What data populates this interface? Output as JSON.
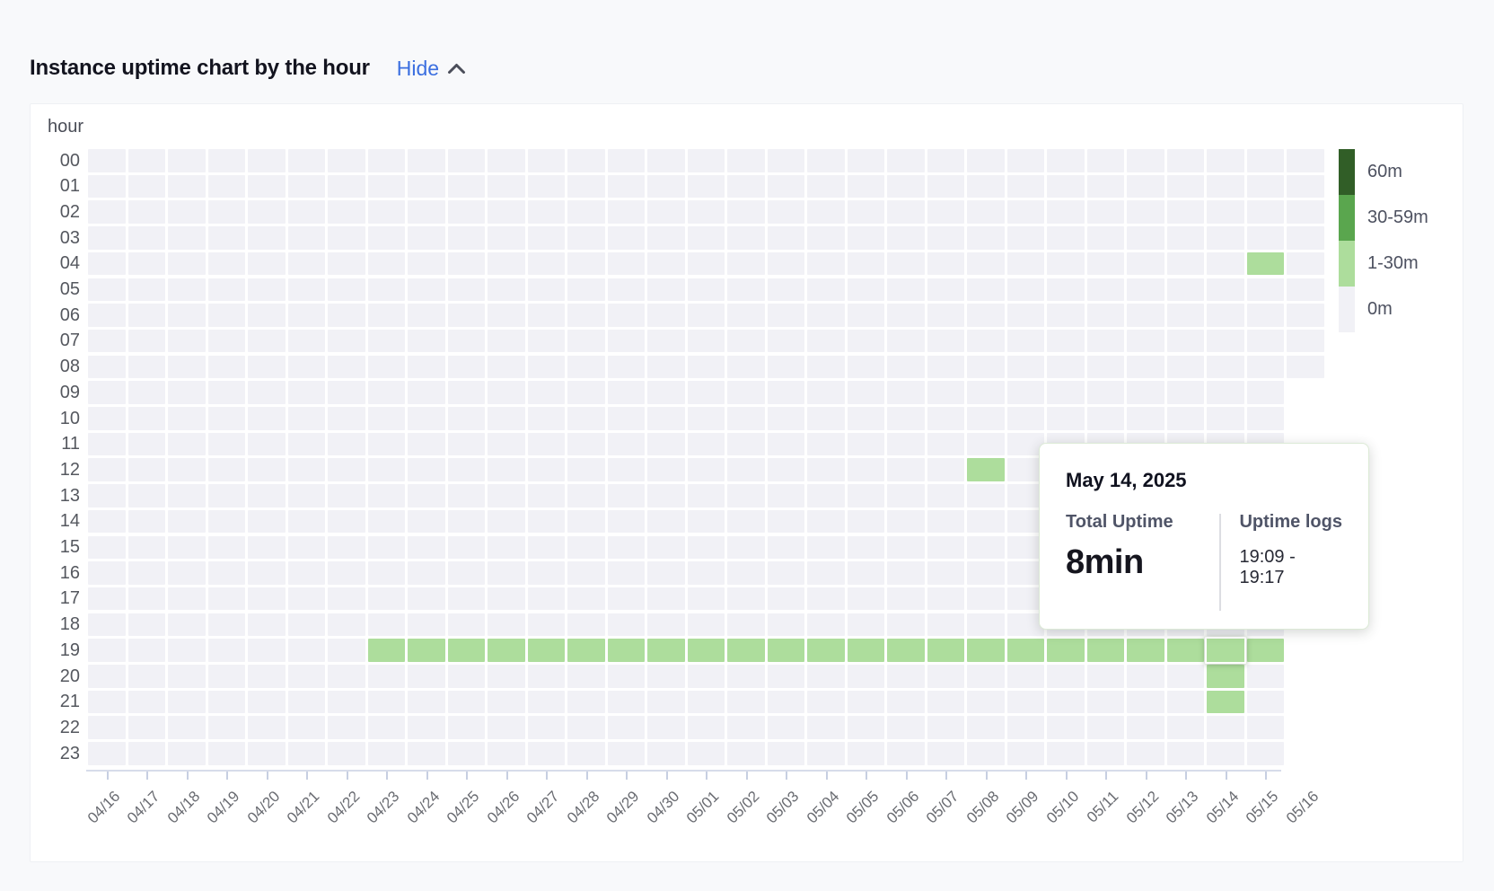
{
  "header": {
    "title": "Instance uptime chart by the hour",
    "toggle_label": "Hide",
    "toggle_icon": "chevron-up-icon",
    "link_color": "#3b6fe0"
  },
  "chart_data": {
    "type": "heatmap",
    "title": "Instance uptime chart by the hour",
    "ylabel": "hour",
    "hours": [
      "00",
      "01",
      "02",
      "03",
      "04",
      "05",
      "06",
      "07",
      "08",
      "09",
      "10",
      "11",
      "12",
      "13",
      "14",
      "15",
      "16",
      "17",
      "18",
      "19",
      "20",
      "21",
      "22",
      "23"
    ],
    "dates": [
      "04/16",
      "04/17",
      "04/18",
      "04/19",
      "04/20",
      "04/21",
      "04/22",
      "04/23",
      "04/24",
      "04/25",
      "04/26",
      "04/27",
      "04/28",
      "04/29",
      "04/30",
      "05/01",
      "05/02",
      "05/03",
      "05/04",
      "05/05",
      "05/06",
      "05/07",
      "05/08",
      "05/09",
      "05/10",
      "05/11",
      "05/12",
      "05/13",
      "05/14",
      "05/15",
      "05/16"
    ],
    "last_date_max_hour": 8,
    "grid_on": true,
    "legend_position": "right",
    "legend": [
      {
        "label": "60m",
        "color": "#315e27"
      },
      {
        "label": "30-59m",
        "color": "#5aa64e"
      },
      {
        "label": "1-30m",
        "color": "#addd9c"
      },
      {
        "label": "0m",
        "color": "#f1f1f6"
      }
    ],
    "cells": [
      {
        "date": "05/15",
        "hour": 4,
        "bucket": "1-30m"
      },
      {
        "date": "05/08",
        "hour": 12,
        "bucket": "1-30m"
      },
      {
        "date": "04/23",
        "hour": 19,
        "bucket": "1-30m"
      },
      {
        "date": "04/24",
        "hour": 19,
        "bucket": "1-30m"
      },
      {
        "date": "04/25",
        "hour": 19,
        "bucket": "1-30m"
      },
      {
        "date": "04/26",
        "hour": 19,
        "bucket": "1-30m"
      },
      {
        "date": "04/27",
        "hour": 19,
        "bucket": "1-30m"
      },
      {
        "date": "04/28",
        "hour": 19,
        "bucket": "1-30m"
      },
      {
        "date": "04/29",
        "hour": 19,
        "bucket": "1-30m"
      },
      {
        "date": "04/30",
        "hour": 19,
        "bucket": "1-30m"
      },
      {
        "date": "05/01",
        "hour": 19,
        "bucket": "1-30m"
      },
      {
        "date": "05/02",
        "hour": 19,
        "bucket": "1-30m"
      },
      {
        "date": "05/03",
        "hour": 19,
        "bucket": "1-30m"
      },
      {
        "date": "05/04",
        "hour": 19,
        "bucket": "1-30m"
      },
      {
        "date": "05/05",
        "hour": 19,
        "bucket": "1-30m"
      },
      {
        "date": "05/06",
        "hour": 19,
        "bucket": "1-30m"
      },
      {
        "date": "05/07",
        "hour": 19,
        "bucket": "1-30m"
      },
      {
        "date": "05/08",
        "hour": 19,
        "bucket": "1-30m"
      },
      {
        "date": "05/09",
        "hour": 19,
        "bucket": "1-30m"
      },
      {
        "date": "05/10",
        "hour": 19,
        "bucket": "1-30m"
      },
      {
        "date": "05/11",
        "hour": 19,
        "bucket": "1-30m"
      },
      {
        "date": "05/12",
        "hour": 19,
        "bucket": "1-30m"
      },
      {
        "date": "05/13",
        "hour": 19,
        "bucket": "1-30m"
      },
      {
        "date": "05/14",
        "hour": 19,
        "bucket": "1-30m"
      },
      {
        "date": "05/15",
        "hour": 19,
        "bucket": "1-30m"
      },
      {
        "date": "05/14",
        "hour": 20,
        "bucket": "1-30m"
      },
      {
        "date": "05/14",
        "hour": 21,
        "bucket": "1-30m"
      }
    ],
    "hovered_cell": {
      "date": "05/14",
      "hour": 19
    }
  },
  "tooltip": {
    "date": "May 14, 2025",
    "total_uptime_label": "Total Uptime",
    "total_uptime_value": "8min",
    "logs_label": "Uptime logs",
    "logs_value": "19:09 - 19:17"
  }
}
